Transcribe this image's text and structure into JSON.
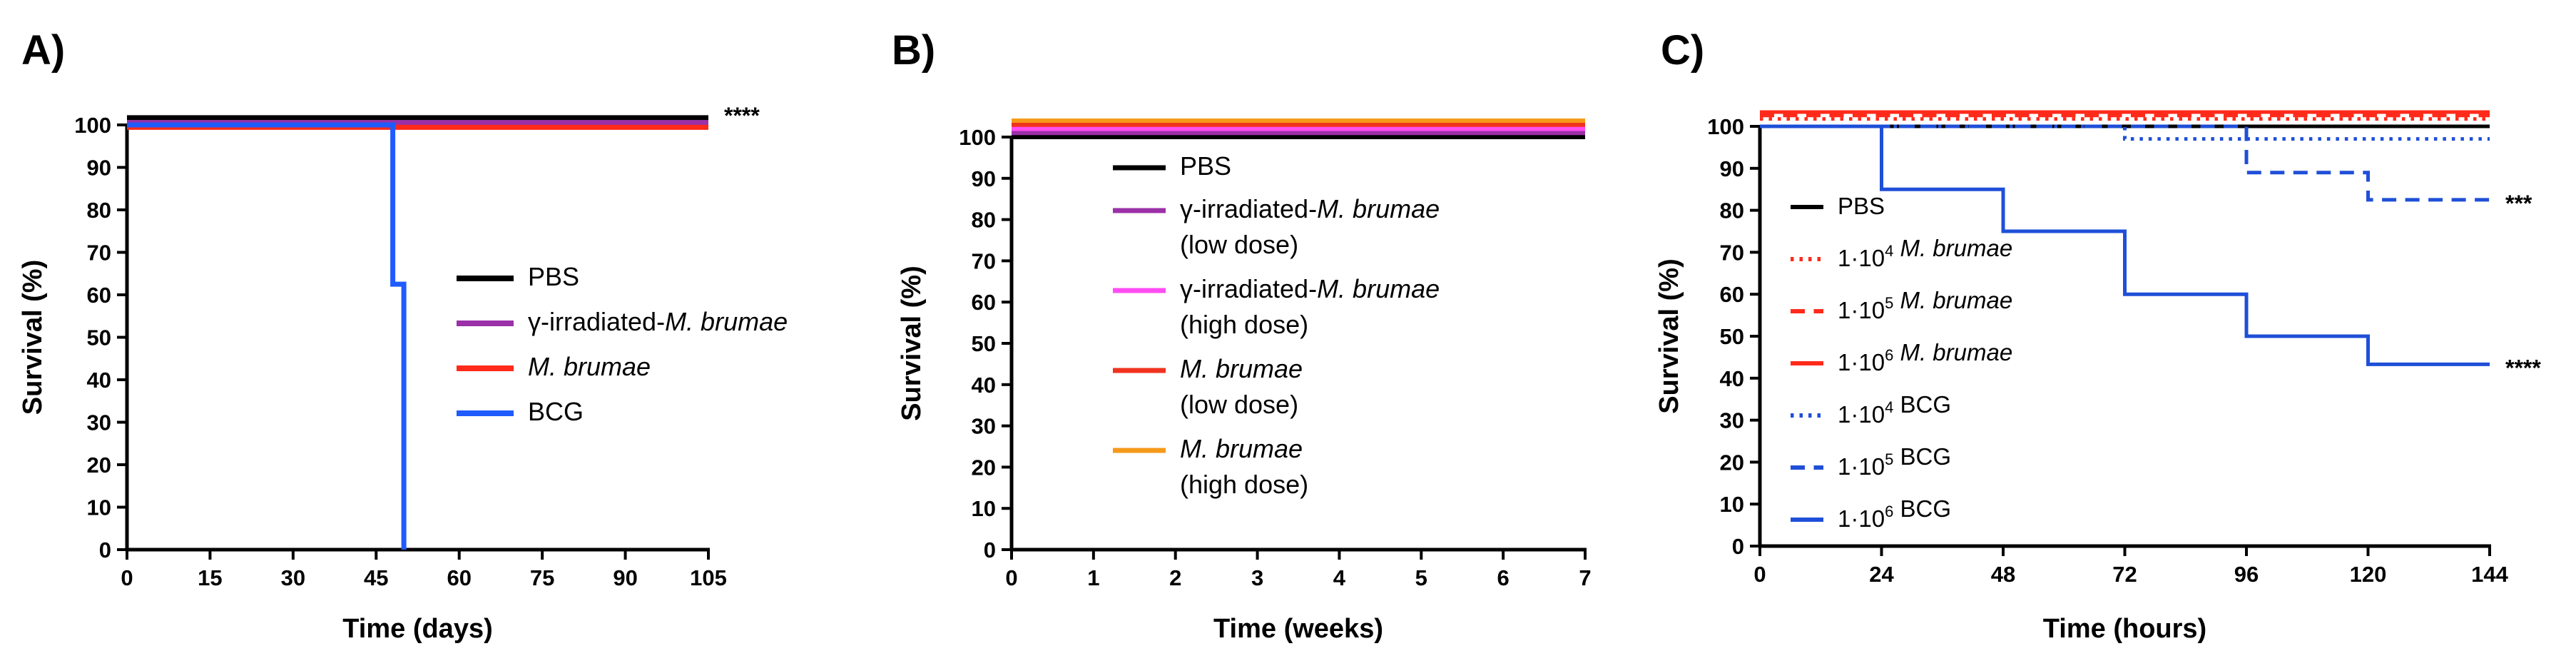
{
  "chart_data": [
    {
      "type": "line",
      "panel_label": "A)",
      "xlabel": "Time (days)",
      "ylabel": "Survival (%)",
      "xlim": [
        0,
        105
      ],
      "ylim": [
        0,
        100
      ],
      "xticks": [
        0,
        15,
        30,
        45,
        60,
        75,
        90,
        105
      ],
      "yticks": [
        0,
        10,
        20,
        30,
        40,
        50,
        60,
        70,
        80,
        90,
        100
      ],
      "series": [
        {
          "name": "PBS",
          "color": "#000000",
          "style": "solid",
          "step": true,
          "points": [
            [
              0,
              100
            ],
            [
              105,
              100
            ]
          ]
        },
        {
          "name": "γ-irradiated-",
          "name_italic": "M. brumae",
          "color": "#9b30a8",
          "style": "solid",
          "step": true,
          "points": [
            [
              0,
              100
            ],
            [
              105,
              100
            ]
          ]
        },
        {
          "name": "",
          "name_italic": "M. brumae",
          "color": "#ff2a1a",
          "style": "solid",
          "step": true,
          "points": [
            [
              0,
              100
            ],
            [
              105,
              100
            ]
          ]
        },
        {
          "name": "BCG",
          "color": "#1f5bff",
          "style": "solid",
          "step": true,
          "points": [
            [
              0,
              100
            ],
            [
              48,
              100
            ],
            [
              48,
              62.5
            ],
            [
              50,
              62.5
            ],
            [
              50,
              0
            ]
          ]
        }
      ],
      "annotations": [
        {
          "text": "****",
          "x": 105,
          "y": 103
        }
      ]
    },
    {
      "type": "line",
      "panel_label": "B)",
      "xlabel": "Time (weeks)",
      "ylabel": "Survival (%)",
      "xlim": [
        0,
        7
      ],
      "ylim": [
        0,
        100
      ],
      "xticks": [
        0,
        1,
        2,
        3,
        4,
        5,
        6,
        7
      ],
      "yticks": [
        0,
        10,
        20,
        30,
        40,
        50,
        60,
        70,
        80,
        90,
        100
      ],
      "series": [
        {
          "name": "PBS",
          "color": "#000000",
          "style": "solid",
          "step": true,
          "points": [
            [
              0,
              100
            ],
            [
              7,
              100
            ]
          ]
        },
        {
          "name": "γ-irradiated-",
          "name_italic": "M. brumae",
          "name_line2": "(low dose)",
          "color": "#9b30a8",
          "style": "solid",
          "step": true,
          "points": [
            [
              0,
              100
            ],
            [
              7,
              100
            ]
          ]
        },
        {
          "name": "γ-irradiated-",
          "name_italic": "M. brumae",
          "name_line2": "(high dose)",
          "color": "#ff4df2",
          "style": "solid",
          "step": true,
          "points": [
            [
              0,
              100
            ],
            [
              7,
              100
            ]
          ]
        },
        {
          "name": "",
          "name_italic": "M. brumae",
          "name_line2": "(low dose)",
          "color": "#f0321e",
          "style": "solid",
          "step": true,
          "points": [
            [
              0,
              100
            ],
            [
              7,
              100
            ]
          ]
        },
        {
          "name": "",
          "name_italic": "M. brumae",
          "name_line2": "(high dose)",
          "color": "#f59a1a",
          "style": "solid",
          "step": true,
          "points": [
            [
              0,
              100
            ],
            [
              7,
              100
            ]
          ]
        }
      ]
    },
    {
      "type": "line",
      "panel_label": "C)",
      "xlabel": "Time (hours)",
      "ylabel": "Survival (%)",
      "xlim": [
        0,
        144
      ],
      "ylim": [
        0,
        100
      ],
      "xticks": [
        0,
        24,
        48,
        72,
        96,
        120,
        144
      ],
      "yticks": [
        0,
        10,
        20,
        30,
        40,
        50,
        60,
        70,
        80,
        90,
        100
      ],
      "series": [
        {
          "name": "PBS",
          "color": "#000000",
          "style": "solid",
          "step": true,
          "points": [
            [
              0,
              100
            ],
            [
              144,
              100
            ]
          ]
        },
        {
          "name": "1·10",
          "sup": "4",
          "name_italic": " M. brumae",
          "color": "#ff2a1a",
          "style": "dotted",
          "step": true,
          "points": [
            [
              0,
              100
            ],
            [
              144,
              100
            ]
          ]
        },
        {
          "name": "1·10",
          "sup": "5",
          "name_italic": " M. brumae",
          "color": "#ff2a1a",
          "style": "dashed",
          "step": true,
          "points": [
            [
              0,
              100
            ],
            [
              144,
              100
            ]
          ]
        },
        {
          "name": "1·10",
          "sup": "6",
          "name_italic": " M. brumae",
          "color": "#ff2a1a",
          "style": "solid",
          "step": true,
          "points": [
            [
              0,
              100
            ],
            [
              144,
              100
            ]
          ]
        },
        {
          "name": "1·10",
          "sup": "4",
          "name_suffix": " BCG",
          "color": "#1f4fd8",
          "style": "dotted",
          "step": true,
          "points": [
            [
              0,
              100
            ],
            [
              72,
              100
            ],
            [
              72,
              97
            ],
            [
              144,
              97
            ]
          ]
        },
        {
          "name": "1·10",
          "sup": "5",
          "name_suffix": " BCG",
          "color": "#1f4fd8",
          "style": "dashed",
          "step": true,
          "points": [
            [
              0,
              100
            ],
            [
              96,
              100
            ],
            [
              96,
              89
            ],
            [
              120,
              89
            ],
            [
              120,
              82.5
            ],
            [
              144,
              82.5
            ]
          ]
        },
        {
          "name": "1·10",
          "sup": "6",
          "name_suffix": " BCG",
          "color": "#1f4fd8",
          "style": "solid",
          "step": true,
          "points": [
            [
              0,
              100
            ],
            [
              24,
              100
            ],
            [
              24,
              85
            ],
            [
              48,
              85
            ],
            [
              48,
              75
            ],
            [
              72,
              75
            ],
            [
              72,
              60
            ],
            [
              96,
              60
            ],
            [
              96,
              50
            ],
            [
              120,
              50
            ],
            [
              120,
              43.3
            ],
            [
              144,
              43.3
            ]
          ]
        }
      ],
      "annotations": [
        {
          "text": "***",
          "x": 144,
          "y": 82.5
        },
        {
          "text": "****",
          "x": 144,
          "y": 43.3
        }
      ]
    }
  ]
}
